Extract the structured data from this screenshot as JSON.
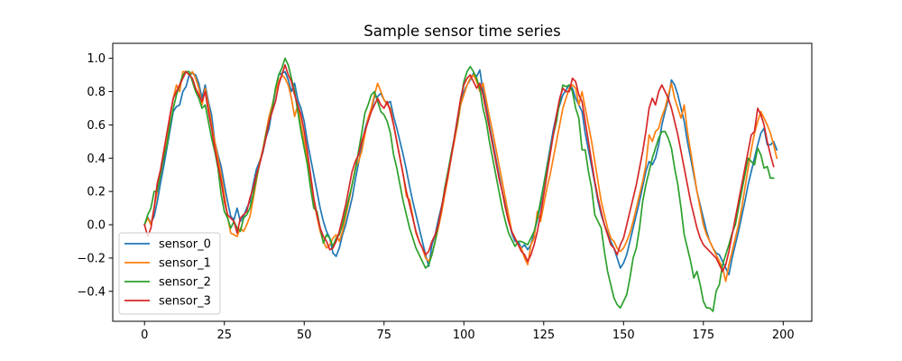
{
  "chart_data": {
    "type": "line",
    "title": "Sample sensor time series",
    "xlabel": "",
    "ylabel": "",
    "xlim": [
      -9.95,
      208.95
    ],
    "ylim": [
      -0.58,
      1.09
    ],
    "xticks": [
      0,
      25,
      50,
      75,
      100,
      125,
      150,
      175,
      200
    ],
    "yticks": [
      -0.4,
      -0.2,
      0.0,
      0.2,
      0.4,
      0.6,
      0.8,
      1.0
    ],
    "xtick_labels": [
      "0",
      "25",
      "50",
      "75",
      "100",
      "125",
      "150",
      "175",
      "200"
    ],
    "ytick_labels": [
      "−0.4",
      "−0.2",
      "0.0",
      "0.2",
      "0.4",
      "0.6",
      "0.8",
      "1.0"
    ],
    "grid": false,
    "legend_position": "lower-left",
    "x": {
      "start": 0,
      "end": 199
    },
    "series": [
      {
        "name": "sensor_0",
        "color": "#1f77b4",
        "values": [
          0.0,
          0.045,
          0.01,
          0.05,
          0.14,
          0.25,
          0.35,
          0.46,
          0.57,
          0.68,
          0.71,
          0.72,
          0.8,
          0.83,
          0.9,
          0.91,
          0.9,
          0.85,
          0.76,
          0.84,
          0.74,
          0.66,
          0.5,
          0.42,
          0.35,
          0.24,
          0.14,
          0.05,
          0.03,
          0.1,
          0.02,
          0.05,
          0.1,
          0.14,
          0.24,
          0.33,
          0.38,
          0.43,
          0.52,
          0.58,
          0.7,
          0.8,
          0.9,
          0.91,
          0.92,
          0.87,
          0.8,
          0.85,
          0.75,
          0.7,
          0.62,
          0.5,
          0.4,
          0.3,
          0.2,
          0.1,
          0.02,
          -0.04,
          -0.08,
          -0.17,
          -0.19,
          -0.14,
          -0.06,
          0.0,
          0.08,
          0.16,
          0.27,
          0.37,
          0.47,
          0.57,
          0.64,
          0.68,
          0.77,
          0.77,
          0.79,
          0.75,
          0.73,
          0.74,
          0.65,
          0.58,
          0.5,
          0.42,
          0.33,
          0.23,
          0.14,
          0.06,
          -0.02,
          -0.1,
          -0.18,
          -0.25,
          -0.12,
          -0.06,
          0.03,
          0.11,
          0.2,
          0.31,
          0.42,
          0.52,
          0.64,
          0.75,
          0.8,
          0.84,
          0.87,
          0.91,
          0.89,
          0.93,
          0.8,
          0.72,
          0.6,
          0.5,
          0.4,
          0.3,
          0.2,
          0.12,
          0.03,
          -0.05,
          -0.1,
          -0.1,
          -0.14,
          -0.12,
          -0.15,
          -0.12,
          -0.05,
          0.03,
          0.12,
          0.24,
          0.35,
          0.46,
          0.57,
          0.66,
          0.72,
          0.78,
          0.81,
          0.84,
          0.82,
          0.76,
          0.72,
          0.68,
          0.55,
          0.45,
          0.35,
          0.25,
          0.14,
          0.06,
          0.0,
          -0.05,
          -0.1,
          -0.14,
          -0.2,
          -0.26,
          -0.23,
          -0.18,
          -0.1,
          -0.02,
          0.06,
          0.14,
          0.23,
          0.32,
          0.38,
          0.36,
          0.4,
          0.48,
          0.6,
          0.68,
          0.75,
          0.87,
          0.84,
          0.78,
          0.7,
          0.62,
          0.5,
          0.4,
          0.3,
          0.2,
          0.12,
          0.04,
          -0.04,
          -0.1,
          -0.14,
          -0.17,
          -0.18,
          -0.22,
          -0.26,
          -0.3,
          -0.2,
          -0.12,
          -0.04,
          0.05,
          0.14,
          0.24,
          0.32,
          0.4,
          0.48,
          0.55,
          0.58,
          0.48,
          0.48,
          0.5,
          0.45
        ]
      },
      {
        "name": "sensor_1",
        "color": "#ff7f0e",
        "values": [
          0.0,
          0.04,
          0.0,
          0.1,
          0.2,
          0.3,
          0.42,
          0.53,
          0.66,
          0.76,
          0.84,
          0.8,
          0.92,
          0.92,
          0.9,
          0.92,
          0.88,
          0.82,
          0.72,
          0.82,
          0.72,
          0.6,
          0.5,
          0.4,
          0.3,
          0.18,
          0.05,
          -0.05,
          -0.06,
          -0.07,
          -0.02,
          -0.04,
          0.0,
          0.05,
          0.15,
          0.26,
          0.37,
          0.45,
          0.55,
          0.65,
          0.72,
          0.8,
          0.86,
          0.9,
          0.88,
          0.84,
          0.76,
          0.65,
          0.72,
          0.6,
          0.5,
          0.38,
          0.24,
          0.14,
          0.05,
          -0.04,
          -0.1,
          -0.14,
          -0.12,
          -0.08,
          -0.06,
          -0.1,
          -0.04,
          0.05,
          0.14,
          0.24,
          0.34,
          0.38,
          0.44,
          0.54,
          0.64,
          0.7,
          0.78,
          0.85,
          0.8,
          0.75,
          0.72,
          0.7,
          0.6,
          0.5,
          0.4,
          0.3,
          0.17,
          0.15,
          0.05,
          -0.05,
          -0.1,
          -0.14,
          -0.2,
          -0.22,
          -0.18,
          -0.1,
          -0.02,
          0.07,
          0.18,
          0.28,
          0.4,
          0.5,
          0.6,
          0.72,
          0.78,
          0.84,
          0.88,
          0.9,
          0.86,
          0.8,
          0.85,
          0.75,
          0.65,
          0.56,
          0.46,
          0.36,
          0.26,
          0.16,
          0.06,
          -0.04,
          -0.08,
          -0.12,
          -0.14,
          -0.2,
          -0.24,
          -0.12,
          -0.08,
          0.08,
          0.02,
          0.12,
          0.22,
          0.3,
          0.4,
          0.5,
          0.6,
          0.7,
          0.76,
          0.82,
          0.84,
          0.82,
          0.72,
          0.8,
          0.7,
          0.6,
          0.5,
          0.38,
          0.26,
          0.14,
          0.06,
          -0.02,
          -0.08,
          -0.1,
          -0.14,
          -0.16,
          -0.14,
          -0.1,
          -0.05,
          0.02,
          0.1,
          0.18,
          0.26,
          0.36,
          0.54,
          0.5,
          0.56,
          0.58,
          0.65,
          0.7,
          0.78,
          0.85,
          0.76,
          0.7,
          0.64,
          0.72,
          0.56,
          0.44,
          0.32,
          0.2,
          0.1,
          0.0,
          -0.06,
          -0.1,
          -0.14,
          -0.18,
          -0.22,
          -0.26,
          -0.34,
          -0.24,
          -0.16,
          -0.08,
          0.0,
          0.1,
          0.22,
          0.34,
          0.45,
          0.55,
          0.62,
          0.68,
          0.64,
          0.6,
          0.55,
          0.48,
          0.4
        ]
      },
      {
        "name": "sensor_2",
        "color": "#2ca02c",
        "values": [
          0.0,
          0.06,
          0.1,
          0.2,
          0.2,
          0.3,
          0.4,
          0.48,
          0.6,
          0.7,
          0.78,
          0.84,
          0.9,
          0.92,
          0.92,
          0.86,
          0.8,
          0.76,
          0.7,
          0.72,
          0.62,
          0.52,
          0.44,
          0.34,
          0.18,
          0.08,
          0.04,
          -0.02,
          0.02,
          -0.02,
          -0.04,
          0.04,
          0.06,
          0.1,
          0.18,
          0.28,
          0.36,
          0.44,
          0.54,
          0.62,
          0.7,
          0.82,
          0.9,
          0.94,
          1.0,
          0.96,
          0.88,
          0.8,
          0.68,
          0.56,
          0.46,
          0.36,
          0.22,
          0.1,
          0.08,
          -0.02,
          -0.11,
          -0.06,
          -0.08,
          -0.13,
          -0.08,
          -0.06,
          0.0,
          0.08,
          0.16,
          0.24,
          0.33,
          0.44,
          0.55,
          0.67,
          0.72,
          0.78,
          0.8,
          0.74,
          0.68,
          0.66,
          0.62,
          0.55,
          0.42,
          0.34,
          0.24,
          0.14,
          0.06,
          -0.02,
          -0.08,
          -0.14,
          -0.18,
          -0.22,
          -0.26,
          -0.24,
          -0.18,
          -0.1,
          0.0,
          0.1,
          0.22,
          0.32,
          0.42,
          0.52,
          0.62,
          0.75,
          0.86,
          0.92,
          0.95,
          0.92,
          0.88,
          0.82,
          0.7,
          0.62,
          0.5,
          0.4,
          0.3,
          0.2,
          0.1,
          0.02,
          -0.05,
          -0.09,
          -0.13,
          -0.1,
          -0.1,
          -0.11,
          -0.12,
          -0.08,
          -0.04,
          0.04,
          0.14,
          0.24,
          0.34,
          0.44,
          0.54,
          0.62,
          0.74,
          0.84,
          0.83,
          0.84,
          0.8,
          0.7,
          0.64,
          0.45,
          0.45,
          0.32,
          0.22,
          0.06,
          0.02,
          -0.02,
          -0.16,
          -0.28,
          -0.36,
          -0.44,
          -0.48,
          -0.5,
          -0.46,
          -0.42,
          -0.32,
          -0.2,
          -0.14,
          -0.02,
          0.14,
          0.24,
          0.32,
          0.4,
          0.46,
          0.52,
          0.56,
          0.56,
          0.52,
          0.46,
          0.34,
          0.24,
          0.1,
          -0.06,
          -0.14,
          -0.22,
          -0.32,
          -0.28,
          -0.36,
          -0.46,
          -0.5,
          -0.5,
          -0.52,
          -0.4,
          -0.36,
          -0.24,
          -0.18,
          -0.12,
          -0.05,
          0.0,
          0.1,
          0.2,
          0.3,
          0.4,
          0.38,
          0.36,
          0.46,
          0.42,
          0.34,
          0.35,
          0.28,
          0.28
        ]
      },
      {
        "name": "sensor_3",
        "color": "#d62728",
        "values": [
          0.0,
          -0.07,
          -0.02,
          0.1,
          0.25,
          0.33,
          0.44,
          0.55,
          0.66,
          0.76,
          0.8,
          0.84,
          0.88,
          0.92,
          0.9,
          0.88,
          0.82,
          0.78,
          0.74,
          0.8,
          0.68,
          0.58,
          0.46,
          0.36,
          0.26,
          0.14,
          0.06,
          0.04,
          0.02,
          -0.05,
          0.04,
          0.06,
          0.08,
          0.16,
          0.22,
          0.3,
          0.36,
          0.44,
          0.52,
          0.62,
          0.68,
          0.74,
          0.84,
          0.9,
          0.96,
          0.9,
          0.86,
          0.78,
          0.72,
          0.66,
          0.56,
          0.44,
          0.3,
          0.16,
          0.06,
          -0.02,
          -0.07,
          -0.1,
          -0.15,
          -0.14,
          -0.1,
          -0.04,
          0.04,
          0.12,
          0.22,
          0.32,
          0.38,
          0.42,
          0.5,
          0.56,
          0.62,
          0.68,
          0.72,
          0.76,
          0.72,
          0.7,
          0.74,
          0.68,
          0.6,
          0.5,
          0.4,
          0.3,
          0.2,
          0.12,
          0.04,
          -0.04,
          -0.1,
          -0.14,
          -0.18,
          -0.16,
          -0.1,
          -0.06,
          0.0,
          0.1,
          0.2,
          0.3,
          0.4,
          0.52,
          0.64,
          0.76,
          0.84,
          0.88,
          0.9,
          0.86,
          0.82,
          0.85,
          0.78,
          0.68,
          0.58,
          0.48,
          0.38,
          0.28,
          0.2,
          0.1,
          0.02,
          -0.04,
          -0.08,
          -0.12,
          -0.16,
          -0.18,
          -0.22,
          -0.18,
          -0.12,
          -0.04,
          0.06,
          0.18,
          0.3,
          0.42,
          0.54,
          0.66,
          0.76,
          0.82,
          0.8,
          0.8,
          0.88,
          0.86,
          0.78,
          0.74,
          0.62,
          0.5,
          0.38,
          0.26,
          0.16,
          0.08,
          0.0,
          -0.06,
          -0.12,
          -0.14,
          -0.18,
          -0.12,
          -0.08,
          0.0,
          0.08,
          0.16,
          0.24,
          0.34,
          0.44,
          0.56,
          0.7,
          0.76,
          0.72,
          0.8,
          0.84,
          0.8,
          0.76,
          0.7,
          0.62,
          0.54,
          0.44,
          0.34,
          0.24,
          0.14,
          0.06,
          -0.02,
          -0.08,
          -0.12,
          -0.14,
          -0.16,
          -0.18,
          -0.2,
          -0.24,
          -0.28,
          -0.24,
          -0.16,
          -0.06,
          0.04,
          0.14,
          0.24,
          0.34,
          0.44,
          0.54,
          0.56,
          0.7,
          0.66,
          0.6,
          0.5,
          0.42,
          0.35
        ]
      }
    ]
  }
}
